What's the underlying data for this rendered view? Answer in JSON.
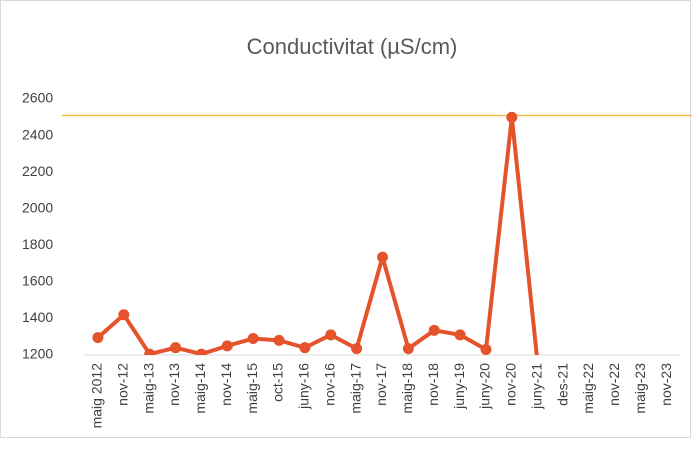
{
  "chart_data": {
    "type": "line",
    "title": "Conductivitat (µS/cm)",
    "categories": [
      "maig 2012",
      "nov-12",
      "maig-13",
      "nov-13",
      "maig-14",
      "nov-14",
      "maig-15",
      "oct-15",
      "juny-16",
      "nov-16",
      "maig-17",
      "nov-17",
      "maig-18",
      "nov-18",
      "juny-19",
      "juny-20",
      "nov-20",
      "juny-21",
      "des-21",
      "maig-22",
      "nov-22",
      "maig-23",
      "nov-23"
    ],
    "series": [
      {
        "name": "Conductivitat",
        "color": "#e5532a",
        "values": [
          1295,
          1420,
          1205,
          1240,
          1205,
          1250,
          1290,
          1280,
          1240,
          1310,
          1235,
          1735,
          1235,
          1335,
          1310,
          1230,
          2500,
          1150,
          null,
          null,
          null,
          null,
          null
        ]
      }
    ],
    "ylim": [
      1200,
      2600
    ],
    "yticks": [
      1200,
      1400,
      1600,
      1800,
      2000,
      2200,
      2400,
      2600
    ],
    "grid": false,
    "reference_line": {
      "value": 2510,
      "color": "#f5b942"
    }
  }
}
